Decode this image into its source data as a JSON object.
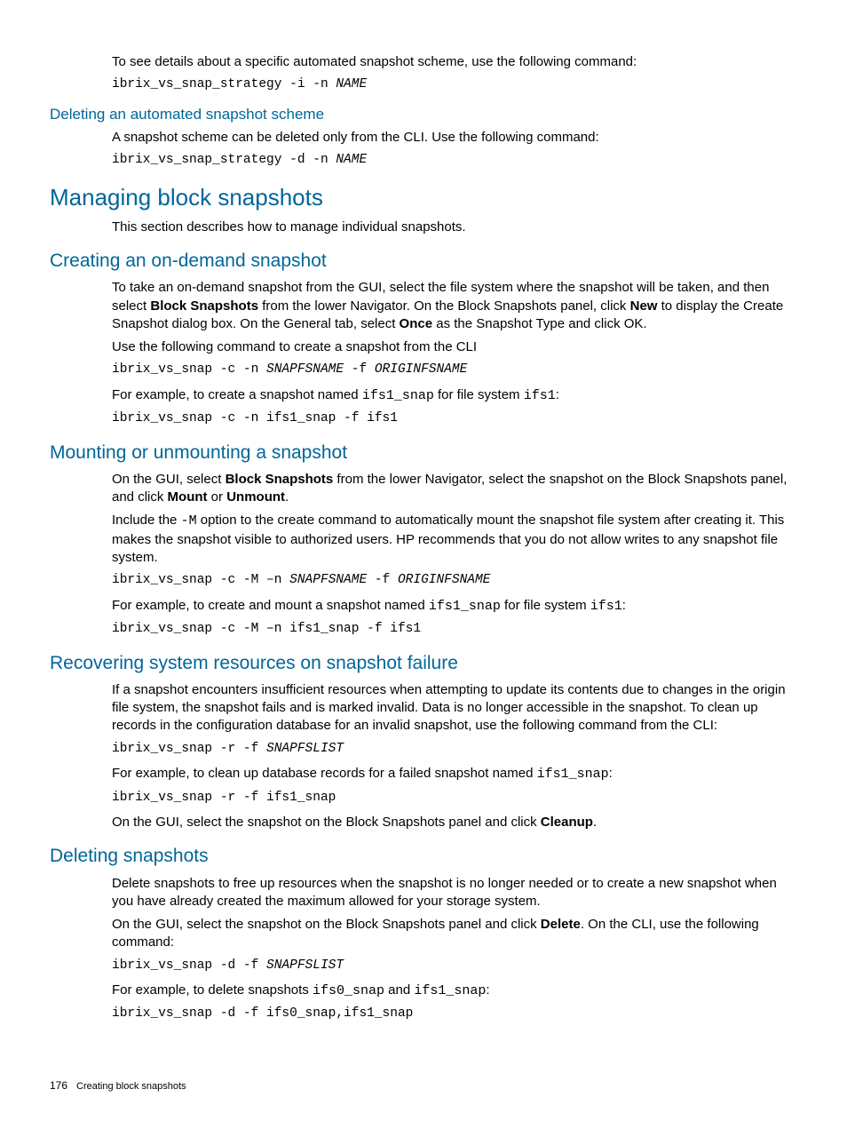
{
  "colors": {
    "heading": "#006699",
    "text": "#000000",
    "background": "#ffffff"
  },
  "typography": {
    "body_family": "Arial, Helvetica, sans-serif",
    "code_family": "Courier New, Courier, monospace",
    "body_size_pt": 11,
    "h1_size_pt": 20,
    "h2_size_pt": 16,
    "h3_size_pt": 13,
    "heading_weight": 300
  },
  "intro": {
    "p1": "To see details about a specific automated snapshot scheme, use the following command:",
    "code1_cmd": "ibrix_vs_snap_strategy -i -n ",
    "code1_arg": "NAME"
  },
  "deleting_scheme": {
    "heading": "Deleting an automated snapshot scheme",
    "p1": "A snapshot scheme can be deleted only from the CLI. Use the following command:",
    "code1_cmd": "ibrix_vs_snap_strategy -d -n ",
    "code1_arg": "NAME"
  },
  "managing": {
    "heading": "Managing block snapshots",
    "p1": "This section describes how to manage individual snapshots."
  },
  "creating": {
    "heading": "Creating an on-demand snapshot",
    "p1a": "To take an on-demand snapshot from the GUI, select the file system where the snapshot will be taken, and then select ",
    "p1_bold1": "Block Snapshots",
    "p1b": " from the lower Navigator. On the Block Snapshots panel, click ",
    "p1_bold2": "New",
    "p1c": " to display the Create Snapshot dialog box. On the General tab, select ",
    "p1_bold3": "Once",
    "p1d": " as the Snapshot Type and click OK.",
    "p2": "Use the following command to create a snapshot from the CLI",
    "code1_cmd": "ibrix_vs_snap -c -n ",
    "code1_arg1": "SNAPFSNAME",
    "code1_mid": " -f ",
    "code1_arg2": "ORIGINFSNAME",
    "p3a": "For example, to create a snapshot named ",
    "p3_mono1": "ifs1_snap",
    "p3b": " for file system ",
    "p3_mono2": "ifs1",
    "p3c": ":",
    "code2": "ibrix_vs_snap -c -n ifs1_snap -f ifs1"
  },
  "mounting": {
    "heading": "Mounting or unmounting a snapshot",
    "p1a": "On the GUI, select ",
    "p1_bold1": "Block Snapshots",
    "p1b": " from the lower Navigator, select the snapshot on the Block Snapshots panel, and click ",
    "p1_bold2": "Mount",
    "p1c": " or ",
    "p1_bold3": "Unmount",
    "p1d": ".",
    "p2a": "Include the ",
    "p2_mono": "-M",
    "p2b": " option to the create command to automatically mount the snapshot file system after creating it. This makes the snapshot visible to authorized users. HP recommends that you do not allow writes to any snapshot file system.",
    "code1_cmd": "ibrix_vs_snap -c -M –n ",
    "code1_arg1": "SNAPFSNAME",
    "code1_mid": " -f ",
    "code1_arg2": "ORIGINFSNAME",
    "p3a": "For example, to create and mount a snapshot named ",
    "p3_mono1": "ifs1_snap",
    "p3b": " for file system ",
    "p3_mono2": "ifs1",
    "p3c": ":",
    "code2": "ibrix_vs_snap -c -M –n ifs1_snap -f ifs1"
  },
  "recovering": {
    "heading": "Recovering system resources on snapshot failure",
    "p1": "If a snapshot encounters insufficient resources when attempting to update its contents due to changes in the origin file system, the snapshot fails and is marked invalid. Data is no longer accessible in the snapshot. To clean up records in the configuration database for an invalid snapshot, use the following command from the CLI:",
    "code1_cmd": "ibrix_vs_snap -r -f ",
    "code1_arg": "SNAPFSLIST",
    "p2a": "For example, to clean up database records for a failed snapshot named ",
    "p2_mono": "ifs1_snap",
    "p2b": ":",
    "code2": "ibrix_vs_snap -r -f ifs1_snap",
    "p3a": "On the GUI, select the snapshot on the Block Snapshots panel and click ",
    "p3_bold": "Cleanup",
    "p3b": "."
  },
  "deleting": {
    "heading": "Deleting snapshots",
    "p1": "Delete snapshots to free up resources when the snapshot is no longer needed or to create a new snapshot when you have already created the maximum allowed for your storage system.",
    "p2a": "On the GUI, select the snapshot on the Block Snapshots panel and click ",
    "p2_bold": "Delete",
    "p2b": ". On the CLI, use the following command:",
    "code1_cmd": "ibrix_vs_snap -d -f ",
    "code1_arg": "SNAPFSLIST",
    "p3a": "For example, to delete snapshots ",
    "p3_mono1": "ifs0_snap",
    "p3b": " and ",
    "p3_mono2": "ifs1_snap",
    "p3c": ":",
    "code2": "ibrix_vs_snap -d -f ifs0_snap,ifs1_snap"
  },
  "footer": {
    "page": "176",
    "title": "Creating block snapshots"
  }
}
